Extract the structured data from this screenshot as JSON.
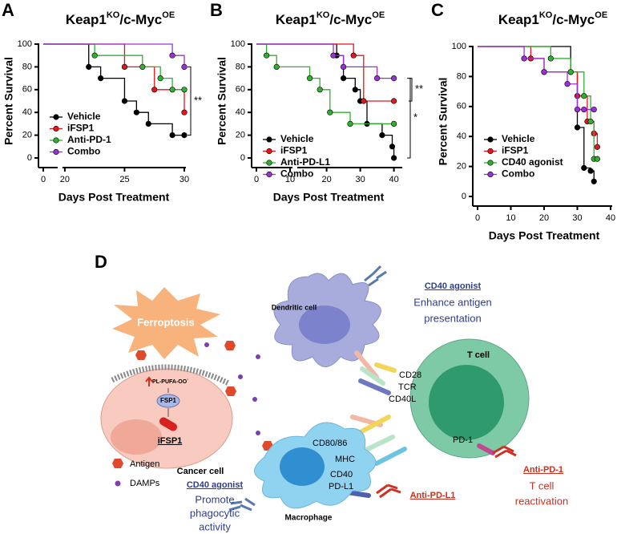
{
  "panels": [
    "A",
    "B",
    "C",
    "D"
  ],
  "chart_data": [
    {
      "type": "step",
      "title_parts": [
        "Keap1",
        "KO",
        "/c-Myc",
        "OE"
      ],
      "ylabel": "Percent Survival",
      "xlabel": "Days Post Treatment",
      "xlim": [
        0,
        30
      ],
      "x_break": [
        1,
        20
      ],
      "xticks": [
        0,
        20,
        25,
        30
      ],
      "ylim": [
        0,
        100
      ],
      "yticks": [
        0,
        20,
        40,
        60,
        80,
        100
      ],
      "legend": "lower left",
      "annotations": [
        "**"
      ],
      "series": [
        {
          "name": "Vehicle",
          "color": "#000000",
          "x": [
            0,
            22,
            23,
            25,
            26,
            27,
            29,
            30
          ],
          "values": [
            100,
            80,
            70,
            50,
            40,
            30,
            20,
            20
          ]
        },
        {
          "name": "iFSP1",
          "color": "#e8141b",
          "x": [
            0,
            25,
            27.5,
            30
          ],
          "values": [
            100,
            80,
            60,
            40
          ]
        },
        {
          "name": "Anti-PD-1",
          "color": "#2fb02f",
          "x": [
            0,
            22.5,
            26.5,
            28,
            29,
            30
          ],
          "values": [
            100,
            90,
            80,
            70,
            60,
            60
          ]
        },
        {
          "name": "Combo",
          "color": "#9b30d9",
          "x": [
            0,
            29,
            30
          ],
          "values": [
            100,
            90,
            80
          ]
        }
      ]
    },
    {
      "type": "step",
      "title_parts": [
        "Keap1",
        "KO",
        "/c-Myc",
        "OE"
      ],
      "ylabel": "Percent Survival",
      "xlabel": "Days Post Treatment",
      "xlim": [
        0,
        42
      ],
      "x_break": [
        10,
        12
      ],
      "xticks": [
        0,
        10,
        20,
        30,
        40
      ],
      "ylim": [
        0,
        100
      ],
      "yticks": [
        0,
        20,
        40,
        60,
        80,
        100
      ],
      "legend": "lower left",
      "annotations": [
        "*",
        "**"
      ],
      "series": [
        {
          "name": "Vehicle",
          "color": "#000000",
          "x": [
            0,
            23,
            25,
            28.5,
            30,
            32,
            36.5,
            39.5,
            40
          ],
          "values": [
            100,
            90,
            70,
            60,
            50,
            30,
            20,
            10,
            0
          ]
        },
        {
          "name": "iFSP1",
          "color": "#e8141b",
          "x": [
            0,
            28,
            31,
            40
          ],
          "values": [
            100,
            90,
            50,
            50
          ]
        },
        {
          "name": "Anti-PD-L1",
          "color": "#2fb02f",
          "x": [
            0,
            3,
            6,
            15,
            18,
            21,
            27,
            40
          ],
          "values": [
            100,
            90,
            80,
            70,
            60,
            40,
            30,
            30
          ]
        },
        {
          "name": "Combo",
          "color": "#9b30d9",
          "x": [
            0,
            22,
            25,
            35,
            40
          ],
          "values": [
            100,
            90,
            80,
            70,
            70
          ]
        }
      ]
    },
    {
      "type": "step",
      "title_parts": [
        "Keap1",
        "KO",
        "/c-Myc",
        "OE"
      ],
      "ylabel": "Percent Survival",
      "xlabel": "Days Post Treatment",
      "xlim": [
        0,
        40
      ],
      "xticks": [
        0,
        10,
        20,
        30,
        40
      ],
      "ylim": [
        0,
        100
      ],
      "yticks": [
        0,
        20,
        40,
        60,
        80,
        100
      ],
      "legend": "lower left",
      "annotations": [],
      "series": [
        {
          "name": "Vehicle",
          "color": "#000000",
          "x": [
            0,
            28,
            30,
            32,
            34,
            35
          ],
          "values": [
            100,
            83,
            46,
            19,
            17,
            10
          ]
        },
        {
          "name": "iFSP1",
          "color": "#e8141b",
          "x": [
            0,
            16,
            20,
            30,
            33,
            35,
            36
          ],
          "values": [
            100,
            92,
            83,
            67,
            50,
            42,
            33
          ]
        },
        {
          "name": "CD40 agonist",
          "color": "#2fb02f",
          "x": [
            0,
            22,
            28,
            32,
            34,
            35,
            36
          ],
          "values": [
            100,
            92,
            83,
            67,
            50,
            25,
            25
          ]
        },
        {
          "name": "Combo",
          "color": "#9b30d9",
          "x": [
            0,
            14,
            20,
            27,
            30,
            32,
            35
          ],
          "values": [
            100,
            92,
            83,
            75,
            58,
            58,
            58
          ]
        }
      ]
    }
  ],
  "diagram": {
    "ferroptosis": "Ferroptosis",
    "lipid": "PL-PUFA-OO˙",
    "fsp1": "FSP1",
    "ifsp1": "iFSP1",
    "cancer_cell": "Cancer cell",
    "antigen": "Antigen",
    "damps": "DAMPs",
    "dendritic_cell": "Dendritic cell",
    "cd40_agonist_top": "CD40 agonist",
    "enhance": [
      "Enhance antigen",
      "presentation"
    ],
    "t_cell": "T cell",
    "cd28": "CD28",
    "tcr": "TCR",
    "cd40l": "CD40L",
    "pd1": "PD-1",
    "cd80": "CD80/86",
    "mhc": "MHC",
    "cd40": "CD40",
    "pdl1": "PD-L1",
    "macrophage": "Macrophage",
    "cd40_agonist_bottom": "CD40 agonist",
    "promote": [
      "Promote",
      "phagocytic",
      "activity"
    ],
    "anti_pdl1": "Anti-PD-L1",
    "anti_pd1": "Anti-PD-1",
    "reactivation": [
      "T cell",
      "reactivation"
    ]
  }
}
